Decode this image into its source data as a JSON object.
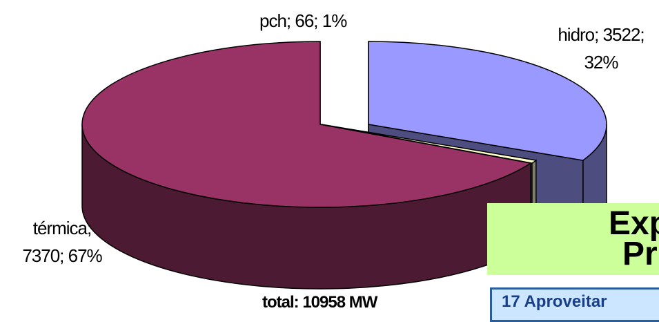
{
  "chart_data": {
    "type": "pie",
    "style": "3d-exploded",
    "slices": [
      {
        "label": "hidro; 3522;",
        "label2": "32%",
        "category": "hidro",
        "value": 3522,
        "percent": 32,
        "top_color": "#9999ff",
        "side_color": "#4d4d80"
      },
      {
        "label": "pch; 66; 1%",
        "category": "pch",
        "value": 66,
        "percent": 1,
        "top_color": "#ffffcc",
        "side_color": "#808066"
      },
      {
        "label": "térmica;",
        "label2": "7370; 67%",
        "category": "térmica",
        "value": 7370,
        "percent": 67,
        "top_color": "#993366",
        "side_color": "#4d1a33"
      }
    ],
    "total_label": "total: 10958 MW",
    "legend": "none"
  },
  "background_panel": {
    "heading_line1": "Exp",
    "heading_line2": "Pr",
    "table_line": "17 Aproveitar",
    "panel_color": "#ccff99",
    "table_color": "#cce6ff"
  }
}
